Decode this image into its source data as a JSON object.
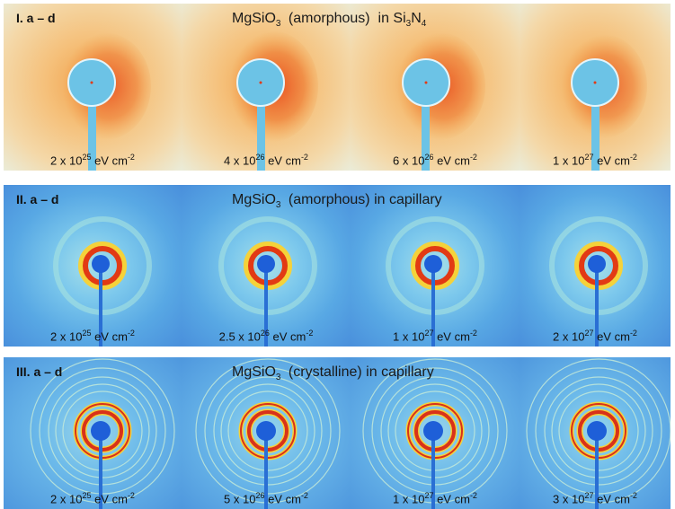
{
  "rows": [
    {
      "label": "I. a – d",
      "title": {
        "base": "MgSiO",
        "sub": "3",
        "phase": "(amorphous)",
        "medium_prefix": "in Si",
        "medium_sub1": "3",
        "medium_mid": "N",
        "medium_sub2": "4"
      },
      "doses": [
        {
          "coef": "2 x 10",
          "exp": "25",
          "unit": " eV cm",
          "unit_exp": "-2"
        },
        {
          "coef": "4 x 10",
          "exp": "26",
          "unit": " eV cm",
          "unit_exp": "-2"
        },
        {
          "coef": "6 x 10",
          "exp": "26",
          "unit": " eV cm",
          "unit_exp": "-2"
        },
        {
          "coef": "1 x 10",
          "exp": "27",
          "unit": " eV cm",
          "unit_exp": "-2"
        }
      ]
    },
    {
      "label": "II. a – d",
      "title": {
        "base": "MgSiO",
        "sub": "3",
        "phase": "(amorphous)",
        "medium": "in capillary"
      },
      "doses": [
        {
          "coef": "2 x 10",
          "exp": "25",
          "unit": " eV cm",
          "unit_exp": "-2"
        },
        {
          "coef": "2.5 x 10",
          "exp": "26",
          "unit": " eV cm",
          "unit_exp": "-2"
        },
        {
          "coef": "1 x 10",
          "exp": "27",
          "unit": " eV cm",
          "unit_exp": "-2"
        },
        {
          "coef": "2 x 10",
          "exp": "27",
          "unit": " eV cm",
          "unit_exp": "-2"
        }
      ]
    },
    {
      "label": "III. a – d",
      "title": {
        "base": "MgSiO",
        "sub": "3",
        "phase": "(crystalline)",
        "medium": "in capillary"
      },
      "doses": [
        {
          "coef": "2 x 10",
          "exp": "25",
          "unit": " eV cm",
          "unit_exp": "-2"
        },
        {
          "coef": "5 x 10",
          "exp": "26",
          "unit": " eV cm",
          "unit_exp": "-2"
        },
        {
          "coef": "1 x 10",
          "exp": "27",
          "unit": " eV cm",
          "unit_exp": "-2"
        },
        {
          "coef": "3 x 10",
          "exp": "27",
          "unit": " eV cm",
          "unit_exp": "-2"
        }
      ]
    }
  ],
  "colors": {
    "row1_background": "#f3c98a",
    "row1_hot": "#e8441a",
    "row1_beamstop": "#6cc3e6",
    "row2_background": "#4f9fe0",
    "row2_ring": "#e23a14",
    "row2_beamstop": "#1e5fd8",
    "row3_background": "#5aa8e6",
    "row3_ring": "#d8321a",
    "row3_beamstop": "#1e5fd8"
  }
}
